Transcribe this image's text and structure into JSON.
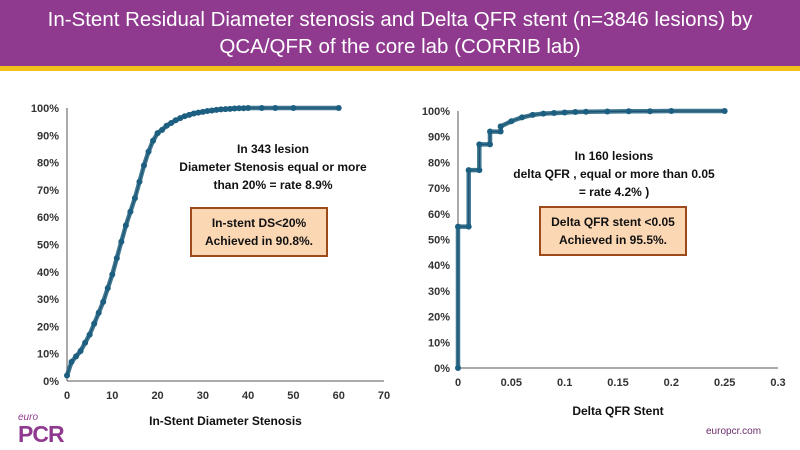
{
  "header": {
    "title_line1": "In-Stent Residual Diameter stenosis and Delta QFR stent (n=3846 lesions) by",
    "title_line2": "QCA/QFR of the core lab (CORRIB lab)"
  },
  "colors": {
    "header_bg": "#8f3a8f",
    "accent_rule": "#f2c21b",
    "series": "#1d5f80",
    "callout_fill": "#fbd7b4",
    "callout_border": "#9c4a1a"
  },
  "chart_data": [
    {
      "type": "line",
      "title": "",
      "xlabel": "In-Stent Diameter Stenosis",
      "ylabel": "",
      "xlim": [
        0,
        70
      ],
      "ylim": [
        0,
        100
      ],
      "xticks": [
        0,
        10,
        20,
        30,
        40,
        50,
        60,
        70
      ],
      "yticks": [
        0,
        10,
        20,
        30,
        40,
        50,
        60,
        70,
        80,
        90,
        100
      ],
      "ytick_labels": [
        "0%",
        "10%",
        "20%",
        "30%",
        "40%",
        "50%",
        "60%",
        "70%",
        "80%",
        "90%",
        "100%"
      ],
      "x": [
        0,
        1,
        2,
        3,
        4,
        5,
        6,
        7,
        8,
        9,
        10,
        11,
        12,
        13,
        14,
        15,
        16,
        17,
        18,
        19,
        20,
        21,
        22,
        23,
        24,
        25,
        26,
        27,
        28,
        29,
        30,
        31,
        32,
        33,
        34,
        35,
        36,
        37,
        38,
        39,
        40,
        43,
        46,
        50,
        60
      ],
      "y": [
        2,
        7,
        9,
        11,
        14,
        17,
        21,
        25,
        29,
        34,
        39,
        45,
        51,
        57,
        62,
        67,
        73,
        79,
        84,
        88,
        90.8,
        92,
        93.5,
        94.5,
        95.5,
        96.3,
        97,
        97.5,
        98,
        98.3,
        98.6,
        98.9,
        99.1,
        99.3,
        99.5,
        99.6,
        99.7,
        99.8,
        99.9,
        99.9,
        100,
        100,
        100,
        100,
        100
      ],
      "annotation": [
        "In 343 lesion",
        "Diameter Stenosis equal or more",
        "than 20% = rate 8.9%"
      ],
      "callout": [
        "In-stent DS<20%",
        "Achieved in 90.8%."
      ]
    },
    {
      "type": "line",
      "title": "",
      "xlabel": "Delta QFR Stent",
      "ylabel": "",
      "xlim": [
        0,
        0.3
      ],
      "ylim": [
        0,
        100
      ],
      "xticks": [
        0,
        0.05,
        0.1,
        0.15,
        0.2,
        0.25,
        0.3
      ],
      "xtick_labels": [
        "0",
        "0.05",
        "0.1",
        "0.15",
        "0.2",
        "0.25",
        "0.3"
      ],
      "yticks": [
        0,
        10,
        20,
        30,
        40,
        50,
        60,
        70,
        80,
        90,
        100
      ],
      "ytick_labels": [
        "0%",
        "10%",
        "20%",
        "30%",
        "40%",
        "50%",
        "60%",
        "70%",
        "80%",
        "90%",
        "100%"
      ],
      "x": [
        0,
        0,
        0.01,
        0.01,
        0.02,
        0.02,
        0.03,
        0.03,
        0.04,
        0.04,
        0.05,
        0.06,
        0.07,
        0.08,
        0.09,
        0.1,
        0.11,
        0.12,
        0.14,
        0.16,
        0.18,
        0.2,
        0.25
      ],
      "y": [
        0,
        55,
        55,
        77,
        77,
        87,
        87,
        92,
        92,
        94,
        96,
        97.5,
        98.5,
        99,
        99.2,
        99.4,
        99.6,
        99.7,
        99.8,
        99.9,
        99.9,
        100,
        100
      ],
      "annotation": [
        "In 160 lesions",
        "delta QFR , equal or more than 0.05",
        "= rate 4.2% )"
      ],
      "callout": [
        "Delta QFR stent <0.05",
        "Achieved in 95.5%."
      ]
    }
  ],
  "footer": {
    "logo_top": "euro",
    "logo_main": "PCR",
    "site": "europcr.com"
  }
}
